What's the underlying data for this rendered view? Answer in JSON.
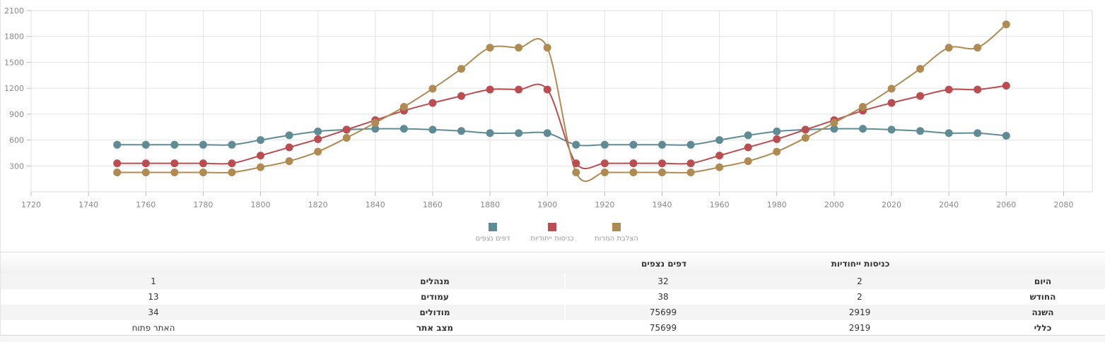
{
  "chart_data": {
    "type": "line",
    "xlim": [
      1720,
      2090
    ],
    "ylim": [
      0,
      2100
    ],
    "x_ticks": [
      1720,
      1740,
      1760,
      1780,
      1800,
      1820,
      1840,
      1860,
      1880,
      1900,
      1920,
      1940,
      1960,
      1980,
      2000,
      2020,
      2040,
      2060,
      2080
    ],
    "y_ticks": [
      300,
      600,
      900,
      1200,
      1500,
      1800,
      2100
    ],
    "grid": true,
    "legend_position": "bottom-center",
    "x": [
      1750,
      1760,
      1770,
      1780,
      1790,
      1800,
      1810,
      1820,
      1830,
      1840,
      1850,
      1860,
      1870,
      1880,
      1890,
      1900,
      1910,
      1920,
      1930,
      1940,
      1950,
      1960,
      1970,
      1980,
      1990,
      2000,
      2010,
      2020,
      2030,
      2040,
      2050,
      2060
    ],
    "series": [
      {
        "name": "דפים נצפים",
        "color": "#5f8b95",
        "values": [
          545,
          545,
          545,
          545,
          545,
          600,
          655,
          700,
          720,
          730,
          730,
          720,
          705,
          680,
          680,
          680,
          545,
          545,
          545,
          545,
          545,
          600,
          655,
          700,
          720,
          730,
          730,
          720,
          705,
          680,
          680,
          650
        ]
      },
      {
        "name": "כניסות ייחודיות",
        "color": "#ba4d51",
        "values": [
          330,
          330,
          330,
          330,
          330,
          420,
          515,
          610,
          720,
          830,
          940,
          1030,
          1110,
          1185,
          1185,
          1185,
          330,
          330,
          330,
          330,
          330,
          420,
          515,
          610,
          720,
          830,
          940,
          1030,
          1110,
          1185,
          1185,
          1230
        ]
      },
      {
        "name": "הצלבת המרות",
        "color": "#af8a53",
        "values": [
          225,
          225,
          225,
          225,
          225,
          285,
          355,
          465,
          625,
          800,
          985,
          1195,
          1425,
          1670,
          1670,
          1670,
          225,
          225,
          225,
          225,
          225,
          285,
          355,
          465,
          625,
          800,
          985,
          1195,
          1425,
          1670,
          1670,
          1940
        ]
      }
    ]
  },
  "stats": {
    "header": {
      "unique_visits": "כניסות ייחודיות",
      "page_views": "דפים נצפים"
    },
    "rows": [
      {
        "label": "היום",
        "unique": "2",
        "views": "32",
        "side_label": "מנהלים",
        "side_value": "1"
      },
      {
        "label": "החודש",
        "unique": "2",
        "views": "38",
        "side_label": "עמודים",
        "side_value": "13"
      },
      {
        "label": "השנה",
        "unique": "2919",
        "views": "75699",
        "side_label": "מודולים",
        "side_value": "34"
      },
      {
        "label": "כללי",
        "unique": "2919",
        "views": "75699",
        "side_label": "מצב אתר",
        "side_value": "האתר פתוח"
      }
    ]
  }
}
